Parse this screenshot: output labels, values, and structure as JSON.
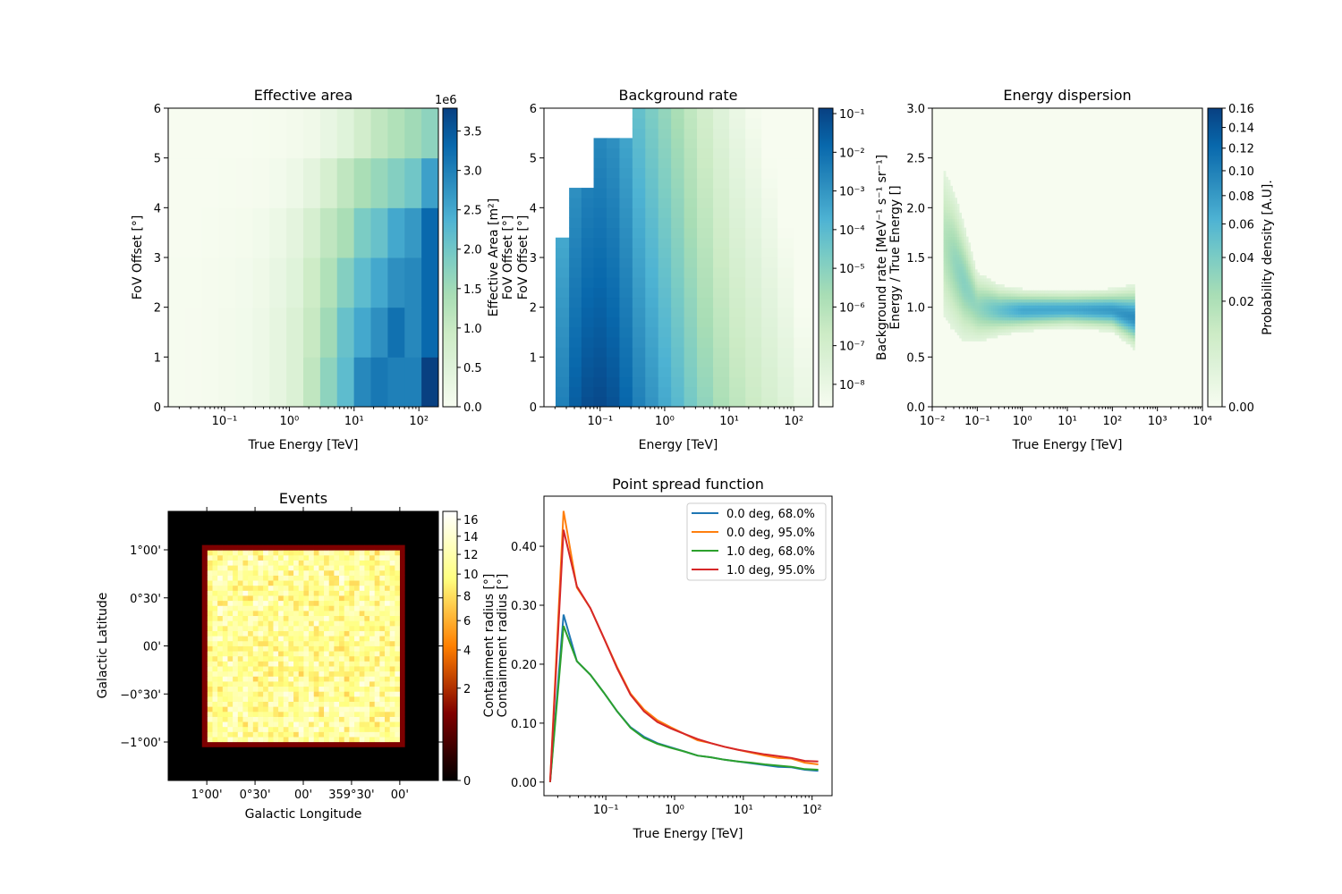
{
  "chart_data": [
    {
      "type": "heatmap",
      "title": "Effective area",
      "xlabel": "True Energy [TeV]",
      "ylabel": "FoV Offset [°]",
      "colorbar_label": "Effective Area [m²]",
      "colorbar_label_overlap": "FoV Offset [°]",
      "colorbar_offset_text": "1e6",
      "colormap": "GnBu",
      "x_scale": "log",
      "xlim": [
        0.0135,
        200
      ],
      "ylim": [
        0,
        6
      ],
      "xticks": [
        {
          "v": 0.1,
          "label": "10⁻¹"
        },
        {
          "v": 1,
          "label": "10⁰"
        },
        {
          "v": 10,
          "label": "10¹"
        },
        {
          "v": 100,
          "label": "10²"
        }
      ],
      "yticks": [
        {
          "v": 0,
          "label": "0"
        },
        {
          "v": 1,
          "label": "1"
        },
        {
          "v": 2,
          "label": "2"
        },
        {
          "v": 3,
          "label": "3"
        },
        {
          "v": 4,
          "label": "4"
        },
        {
          "v": 5,
          "label": "5"
        },
        {
          "v": 6,
          "label": "6"
        }
      ],
      "colorbar_range": [
        0,
        3.79
      ],
      "colorbar_ticks": [
        {
          "v": 0,
          "label": "0.0"
        },
        {
          "v": 0.5,
          "label": "0.5"
        },
        {
          "v": 1,
          "label": "1.0"
        },
        {
          "v": 1.5,
          "label": "1.5"
        },
        {
          "v": 2,
          "label": "2.0"
        },
        {
          "v": 2.5,
          "label": "2.5"
        },
        {
          "v": 3,
          "label": "3.0"
        },
        {
          "v": 3.5,
          "label": "3.5"
        }
      ],
      "offset_edges": [
        0,
        1,
        2,
        3,
        4,
        5,
        6
      ],
      "values_1e6_m2_by_offset_row": [
        [
          0.02,
          0.03,
          0.05,
          0.08,
          0.12,
          0.2,
          0.35,
          0.6,
          1.1,
          1.7,
          2.2,
          2.9,
          3.1,
          3.0,
          3.0,
          3.8
        ],
        [
          0.02,
          0.03,
          0.05,
          0.08,
          0.12,
          0.2,
          0.35,
          0.6,
          1.0,
          1.5,
          2.1,
          2.5,
          2.8,
          3.2,
          2.9,
          3.3
        ],
        [
          0.02,
          0.02,
          0.04,
          0.07,
          0.1,
          0.17,
          0.3,
          0.5,
          0.9,
          1.3,
          1.8,
          2.2,
          2.5,
          2.8,
          2.9,
          3.3
        ],
        [
          0.01,
          0.01,
          0.02,
          0.04,
          0.07,
          0.12,
          0.22,
          0.4,
          0.7,
          1.1,
          1.4,
          1.9,
          2.1,
          2.5,
          2.7,
          3.3
        ],
        [
          0,
          0,
          0.01,
          0.02,
          0.03,
          0.05,
          0.1,
          0.2,
          0.4,
          0.7,
          1.1,
          1.4,
          1.6,
          1.8,
          2.0,
          2.6
        ],
        [
          0,
          0,
          0,
          0.01,
          0.01,
          0.02,
          0.04,
          0.08,
          0.15,
          0.3,
          0.5,
          0.8,
          1.1,
          1.3,
          1.5,
          1.7
        ]
      ]
    },
    {
      "type": "heatmap",
      "title": "Background rate",
      "xlabel": "Energy [TeV]",
      "ylabel": "FoV Offset [°]",
      "colorbar_label": "Background rate [MeV⁻¹ s⁻¹ sr⁻¹]",
      "colormap": "GnBu",
      "x_scale": "log",
      "color_scale": "log",
      "xlim": [
        0.0135,
        200
      ],
      "ylim": [
        0,
        6
      ],
      "xticks": [
        {
          "v": 0.1,
          "label": "10⁻¹"
        },
        {
          "v": 1,
          "label": "10⁰"
        },
        {
          "v": 10,
          "label": "10¹"
        },
        {
          "v": 100,
          "label": "10²"
        }
      ],
      "yticks": [
        {
          "v": 0,
          "label": "0"
        },
        {
          "v": 1,
          "label": "1"
        },
        {
          "v": 2,
          "label": "2"
        },
        {
          "v": 3,
          "label": "3"
        },
        {
          "v": 4,
          "label": "4"
        },
        {
          "v": 5,
          "label": "5"
        },
        {
          "v": 6,
          "label": "6"
        }
      ],
      "colorbar_log_range": [
        -8.58,
        -0.86
      ],
      "colorbar_ticks": [
        {
          "v": -1,
          "label": "10⁻¹"
        },
        {
          "v": -2,
          "label": "10⁻²"
        },
        {
          "v": -3,
          "label": "10⁻³"
        },
        {
          "v": -4,
          "label": "10⁻⁴"
        },
        {
          "v": -5,
          "label": "10⁻⁵"
        },
        {
          "v": -6,
          "label": "10⁻⁶"
        },
        {
          "v": -7,
          "label": "10⁻⁷"
        },
        {
          "v": -8,
          "label": "10⁻⁸"
        }
      ],
      "log_energy_edges": [
        -1.69,
        -1.48,
        -1.29,
        -1.1,
        -0.9,
        -0.7,
        -0.5,
        -0.3,
        -0.1,
        0.1,
        0.3,
        0.5,
        0.75,
        1.0,
        1.25,
        1.5,
        1.75,
        2.0,
        2.3
      ],
      "max_offset_per_column": [
        3.4,
        4.4,
        4.4,
        5.4,
        5.4,
        5.4,
        6,
        6,
        6,
        6,
        6,
        6,
        6,
        6,
        6,
        6,
        6,
        6
      ],
      "log_rate_at_zero_offset": [
        -2.5,
        -1.6,
        -1.2,
        -1.1,
        -1.3,
        -1.8,
        -2.5,
        -3.0,
        -3.5,
        -4.0,
        -4.6,
        -5.2,
        -5.8,
        -6.3,
        -6.7,
        -7.1,
        -7.5,
        -8.0
      ],
      "log_rate_drop_per_degree": 0.3
    },
    {
      "type": "heatmap",
      "title": "Energy dispersion",
      "xlabel": "True Energy [TeV]",
      "ylabel": "Energy / True Energy []",
      "colorbar_label": "Probability density [A.U].",
      "colormap": "GnBu",
      "x_scale": "log",
      "color_scale": "sqrt",
      "xlim": [
        0.01,
        10000
      ],
      "ylim": [
        0,
        3
      ],
      "xticks": [
        {
          "v": 0.01,
          "label": "10⁻²"
        },
        {
          "v": 0.1,
          "label": "10⁻¹"
        },
        {
          "v": 1,
          "label": "10⁰"
        },
        {
          "v": 10,
          "label": "10¹"
        },
        {
          "v": 100,
          "label": "10²"
        },
        {
          "v": 1000,
          "label": "10³"
        },
        {
          "v": 10000,
          "label": "10⁴"
        }
      ],
      "yticks": [
        {
          "v": 0,
          "label": "0.0"
        },
        {
          "v": 0.5,
          "label": "0.5"
        },
        {
          "v": 1,
          "label": "1.0"
        },
        {
          "v": 1.5,
          "label": "1.5"
        },
        {
          "v": 2,
          "label": "2.0"
        },
        {
          "v": 2.5,
          "label": "2.5"
        },
        {
          "v": 3,
          "label": "3.0"
        }
      ],
      "colorbar_range": [
        0,
        0.16
      ],
      "colorbar_ticks": [
        {
          "v": 0,
          "label": "0.00"
        },
        {
          "v": 0.02,
          "label": "0.02"
        },
        {
          "v": 0.04,
          "label": "0.04"
        },
        {
          "v": 0.06,
          "label": "0.06"
        },
        {
          "v": 0.08,
          "label": "0.08"
        },
        {
          "v": 0.1,
          "label": "0.10"
        },
        {
          "v": 0.12,
          "label": "0.12"
        },
        {
          "v": 0.14,
          "label": "0.14"
        },
        {
          "v": 0.16,
          "label": "0.16"
        }
      ],
      "ridge": [
        {
          "log_e": -1.75,
          "mu": 1.65,
          "sigma": 0.35,
          "peak": 0.018
        },
        {
          "log_e": -1.5,
          "mu": 1.45,
          "sigma": 0.3,
          "peak": 0.03
        },
        {
          "log_e": -1.3,
          "mu": 1.25,
          "sigma": 0.25,
          "peak": 0.035
        },
        {
          "log_e": -1.0,
          "mu": 1.0,
          "sigma": 0.15,
          "peak": 0.03
        },
        {
          "log_e": -0.5,
          "mu": 0.97,
          "sigma": 0.1,
          "peak": 0.05
        },
        {
          "log_e": 0,
          "mu": 0.97,
          "sigma": 0.08,
          "peak": 0.07
        },
        {
          "log_e": 1,
          "mu": 0.98,
          "sigma": 0.07,
          "peak": 0.07
        },
        {
          "log_e": 2,
          "mu": 0.97,
          "sigma": 0.08,
          "peak": 0.08
        },
        {
          "log_e": 2.5,
          "mu": 0.9,
          "sigma": 0.12,
          "peak": 0.09
        }
      ]
    },
    {
      "type": "heatmap",
      "title": "Events",
      "xlabel": "Galactic Longitude",
      "ylabel": "Galactic Latitude",
      "colorbar_label": "Containment radius [°]",
      "colormap": "afmhot",
      "color_scale": "sqrt",
      "xticks": [
        {
          "v": 1.0,
          "label": "1°00'"
        },
        {
          "v": 0.5,
          "label": "0°30'"
        },
        {
          "v": 0,
          "label": "00'"
        },
        {
          "v": -0.5,
          "label": "359°30'"
        },
        {
          "v": -1.0,
          "label": "00'"
        }
      ],
      "yticks": [
        {
          "v": 1.0,
          "label": "1°00'"
        },
        {
          "v": 0.5,
          "label": "0°30'"
        },
        {
          "v": 0,
          "label": "00'"
        },
        {
          "v": -0.5,
          "label": "−0°30'"
        },
        {
          "v": -1.0,
          "label": "−1°00'"
        }
      ],
      "xlim_deg": [
        1.4,
        -1.4
      ],
      "ylim_deg": [
        -1.4,
        1.4
      ],
      "filled_region_deg": [
        -1.05,
        1.05
      ],
      "interior_counts_range": [
        5,
        16
      ],
      "edge_counts": 1,
      "colorbar_range": [
        0,
        17
      ],
      "colorbar_ticks": [
        {
          "v": 0,
          "label": "0"
        },
        {
          "v": 2,
          "label": "2"
        },
        {
          "v": 4,
          "label": "4"
        },
        {
          "v": 6,
          "label": "6"
        },
        {
          "v": 8,
          "label": "8"
        },
        {
          "v": 10,
          "label": "10"
        },
        {
          "v": 12,
          "label": "12"
        },
        {
          "v": 14,
          "label": "14"
        },
        {
          "v": 16,
          "label": "16"
        }
      ]
    },
    {
      "type": "line",
      "title": "Point spread function",
      "xlabel": "True Energy [TeV]",
      "ylabel": "Containment radius [°]",
      "x_scale": "log",
      "xlim": [
        0.0126,
        195
      ],
      "ylim": [
        -0.023,
        0.485
      ],
      "legend_position": "top-right",
      "xticks": [
        {
          "v": 0.1,
          "label": "10⁻¹"
        },
        {
          "v": 1,
          "label": "10⁰"
        },
        {
          "v": 10,
          "label": "10¹"
        },
        {
          "v": 100,
          "label": "10²"
        }
      ],
      "yticks": [
        {
          "v": 0,
          "label": "0.00"
        },
        {
          "v": 0.1,
          "label": "0.10"
        },
        {
          "v": 0.2,
          "label": "0.20"
        },
        {
          "v": 0.3,
          "label": "0.30"
        },
        {
          "v": 0.4,
          "label": "0.40"
        }
      ],
      "x": [
        0.0155,
        0.0243,
        0.038,
        0.0596,
        0.0933,
        0.146,
        0.229,
        0.359,
        0.562,
        0.881,
        1.38,
        2.16,
        3.39,
        5.31,
        8.32,
        13.0,
        20.4,
        32.0,
        50.1,
        78.5,
        123
      ],
      "series": [
        {
          "name": "0.0 deg, 68.0%",
          "color": "#1f77b4",
          "values": [
            0,
            0.284,
            0.205,
            0.182,
            0.152,
            0.12,
            0.093,
            0.077,
            0.066,
            0.059,
            0.052,
            0.045,
            0.042,
            0.038,
            0.035,
            0.032,
            0.029,
            0.026,
            0.025,
            0.021,
            0.019
          ]
        },
        {
          "name": "0.0 deg, 95.0%",
          "color": "#ff7f0e",
          "values": [
            0,
            0.46,
            0.33,
            0.295,
            0.245,
            0.195,
            0.15,
            0.123,
            0.105,
            0.093,
            0.082,
            0.071,
            0.066,
            0.06,
            0.055,
            0.05,
            0.045,
            0.041,
            0.04,
            0.033,
            0.03
          ]
        },
        {
          "name": "1.0 deg, 68.0%",
          "color": "#2ca02c",
          "values": [
            0,
            0.265,
            0.205,
            0.182,
            0.152,
            0.12,
            0.092,
            0.075,
            0.065,
            0.058,
            0.052,
            0.045,
            0.042,
            0.038,
            0.035,
            0.033,
            0.03,
            0.028,
            0.026,
            0.022,
            0.021
          ]
        },
        {
          "name": "1.0 deg, 95.0%",
          "color": "#d62728",
          "values": [
            0,
            0.428,
            0.332,
            0.295,
            0.245,
            0.193,
            0.148,
            0.12,
            0.102,
            0.091,
            0.082,
            0.073,
            0.066,
            0.06,
            0.055,
            0.051,
            0.047,
            0.044,
            0.041,
            0.036,
            0.035
          ]
        }
      ]
    }
  ]
}
